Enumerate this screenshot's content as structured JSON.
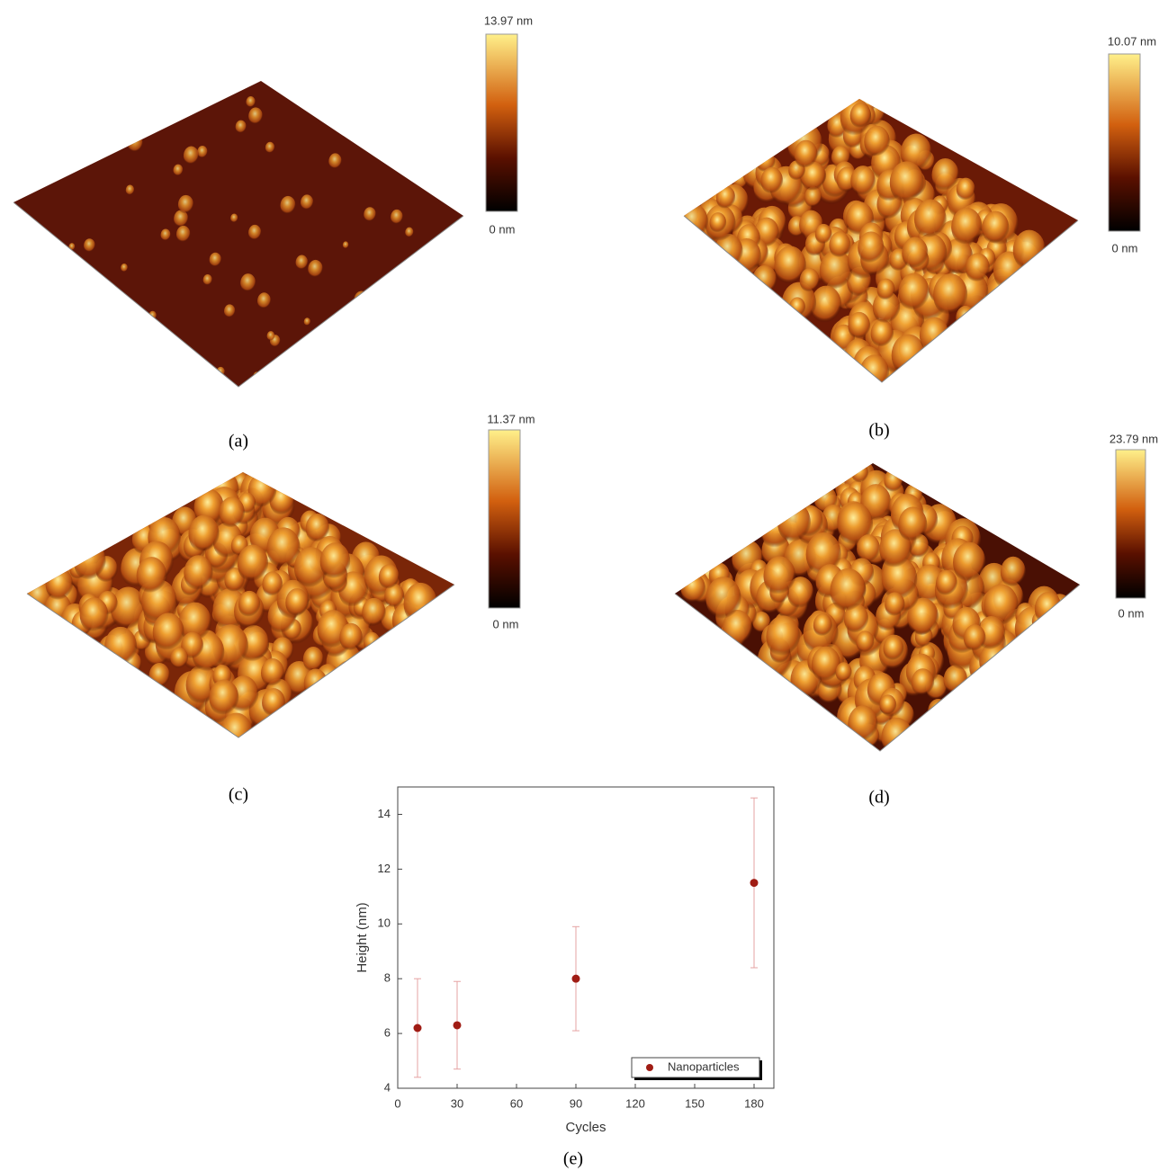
{
  "afm_panels": [
    {
      "label": "(a)",
      "max_label": "13.97 nm",
      "min_label": "0 nm"
    },
    {
      "label": "(b)",
      "max_label": "10.07 nm",
      "min_label": "0 nm"
    },
    {
      "label": "(c)",
      "max_label": "11.37 nm",
      "min_label": "0 nm"
    },
    {
      "label": "(d)",
      "max_label": "23.79 nm",
      "min_label": "0 nm"
    }
  ],
  "chart_data": {
    "type": "scatter",
    "label": "(e)",
    "x_label": "Cycles",
    "y_label": "Height (nm)",
    "x": [
      10,
      30,
      90,
      180
    ],
    "series": [
      {
        "name": "Nanoparticles",
        "color": "#a01c14",
        "error_color": "#e6a3a3",
        "values": [
          6.2,
          6.3,
          8.0,
          11.5
        ],
        "errors": [
          1.8,
          1.6,
          1.9,
          3.1
        ]
      }
    ],
    "xlim": [
      0,
      190
    ],
    "ylim": [
      4,
      15
    ],
    "xticks": [
      0,
      30,
      60,
      90,
      120,
      150,
      180
    ],
    "yticks": [
      4,
      6,
      8,
      10,
      12,
      14
    ],
    "legend": "lower right"
  }
}
